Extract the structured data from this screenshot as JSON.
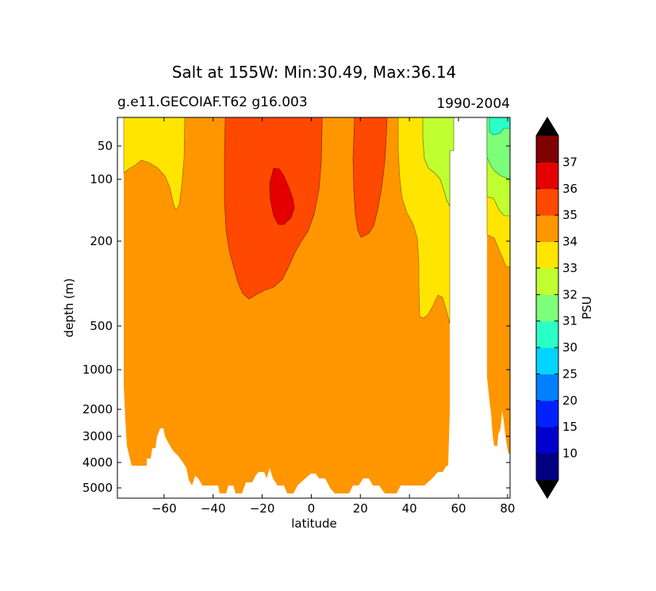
{
  "chart_data": {
    "type": "heatmap",
    "title": "Salt at 155W: Min:30.49, Max:36.14",
    "subtitle_left": "g.e11.GECOIAF.T62 g16.003",
    "subtitle_right": "1990-2004",
    "xlabel": "latitude",
    "ylabel": "depth (m)",
    "xlim": [
      -79,
      81
    ],
    "x_ticks": [
      -60,
      -40,
      -20,
      0,
      20,
      40,
      60,
      80
    ],
    "x_tick_labels": [
      "−60",
      "−40",
      "−20",
      "0",
      "20",
      "40",
      "60",
      "80"
    ],
    "y_ticks": [
      50,
      100,
      200,
      500,
      1000,
      2000,
      3000,
      4000,
      5000
    ],
    "y_tick_labels": [
      "50",
      "100",
      "200",
      "500",
      "1000",
      "2000",
      "3000",
      "4000",
      "5000"
    ],
    "y_inverted": true,
    "colorbar": {
      "label": "PSU",
      "extend": "both",
      "levels": [
        10,
        15,
        20,
        25,
        30,
        31,
        32,
        33,
        34,
        35,
        36,
        37
      ],
      "tick_labels": [
        "10",
        "15",
        "20",
        "25",
        "30",
        "31",
        "32",
        "33",
        "34",
        "35",
        "36",
        "37"
      ],
      "colors": [
        "#000080",
        "#0000cd",
        "#0022ff",
        "#0080ff",
        "#00d4ff",
        "#2bffc8",
        "#7dff7a",
        "#c0ff30",
        "#ffe500",
        "#ff9600",
        "#ff4800",
        "#e50000",
        "#800000"
      ]
    },
    "regions": [
      {
        "range": "33-34",
        "color": "#ffe500",
        "lat_range": [
          -77,
          -52
        ],
        "depth_range": [
          0,
          140
        ]
      },
      {
        "range": "35-36",
        "color": "#ff4800",
        "lat_range": [
          -35,
          5
        ],
        "depth_range": [
          0,
          380
        ]
      },
      {
        "range": "36-37",
        "color": "#e50000",
        "lat_range": [
          -17,
          -7
        ],
        "depth_range": [
          85,
          170
        ]
      },
      {
        "range": "35-36",
        "color": "#ff4800",
        "lat_range": [
          17,
          32
        ],
        "depth_range": [
          0,
          190
        ]
      },
      {
        "range": "33-34",
        "color": "#ffe500",
        "lat_range": [
          35,
          57
        ],
        "depth_range": [
          0,
          500
        ]
      },
      {
        "range": "32-33",
        "color": "#c0ff30",
        "lat_range": [
          45,
          57
        ],
        "depth_range": [
          0,
          110
        ]
      },
      {
        "range": "33-34",
        "color": "#ffe500",
        "lat_range": [
          72,
          81
        ],
        "depth_range": [
          0,
          270
        ]
      },
      {
        "range": "32-33",
        "color": "#c0ff30",
        "lat_range": [
          72,
          81
        ],
        "depth_range": [
          0,
          145
        ]
      },
      {
        "range": "31-32",
        "color": "#7dff7a",
        "lat_range": [
          72,
          81
        ],
        "depth_range": [
          0,
          85
        ]
      },
      {
        "range": "30-31",
        "color": "#2bffc8",
        "lat_range": [
          73,
          81
        ],
        "depth_range": [
          0,
          30
        ]
      }
    ],
    "background_range": {
      "range": "34-35",
      "color": "#ff9600"
    },
    "no_data_lat_range": [
      57,
      72
    ]
  }
}
